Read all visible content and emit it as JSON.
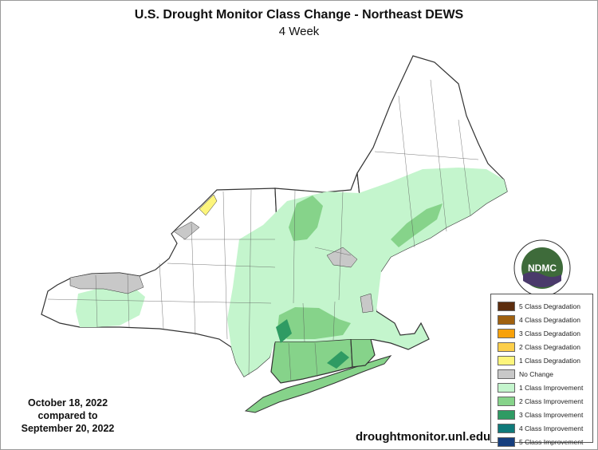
{
  "title": "U.S. Drought Monitor Class Change - Northeast DEWS",
  "subtitle": "4 Week",
  "dates": {
    "line1": "October 18, 2022",
    "line2": "compared to",
    "line3": "September 20, 2022"
  },
  "website": "droughtmonitor.unl.edu",
  "logo": {
    "text": "NDMC",
    "ring_text": "NATIONAL DROUGHT MITIGATION CENTER · UNIVERSITY OF NEBRASKA",
    "color": "#3e6b3a"
  },
  "legend": [
    {
      "label": "5 Class Degradation",
      "color": "#5c2d0e"
    },
    {
      "label": "4 Class Degradation",
      "color": "#a0610f"
    },
    {
      "label": "3 Class Degradation",
      "color": "#f7a10a"
    },
    {
      "label": "2 Class Degradation",
      "color": "#fdcf4a"
    },
    {
      "label": "1 Class Degradation",
      "color": "#fdf57c"
    },
    {
      "label": "No Change",
      "color": "#c8c8c8"
    },
    {
      "label": "1 Class Improvement",
      "color": "#c4f5cd"
    },
    {
      "label": "2 Class Improvement",
      "color": "#86d38a"
    },
    {
      "label": "3 Class Improvement",
      "color": "#2f9b63"
    },
    {
      "label": "4 Class Improvement",
      "color": "#0f7a7a"
    },
    {
      "label": "5 Class Improvement",
      "color": "#153e7e"
    }
  ]
}
